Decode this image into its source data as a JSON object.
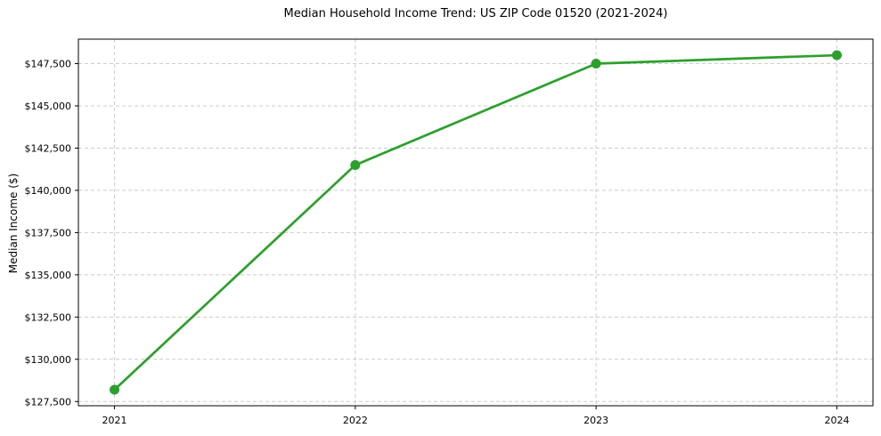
{
  "figure": {
    "background_color": "#ffffff"
  },
  "chart_data": {
    "type": "line",
    "title": "Median Household Income Trend: US ZIP Code 01520 (2021-2024)",
    "xlabel": "",
    "ylabel": "Median Income ($)",
    "categories": [
      "2021",
      "2022",
      "2023",
      "2024"
    ],
    "values": [
      128200,
      141500,
      147500,
      148000
    ],
    "y_ticks": [
      {
        "value": 127500,
        "label": "$127,500"
      },
      {
        "value": 130000,
        "label": "$130,000"
      },
      {
        "value": 132500,
        "label": "$132,500"
      },
      {
        "value": 135000,
        "label": "$135,000"
      },
      {
        "value": 137500,
        "label": "$137,500"
      },
      {
        "value": 140000,
        "label": "$140,000"
      },
      {
        "value": 142500,
        "label": "$142,500"
      },
      {
        "value": 145000,
        "label": "$145,000"
      },
      {
        "value": 147500,
        "label": "$147,500"
      }
    ],
    "xlim": [
      -0.15,
      3.15
    ],
    "ylim": [
      127250,
      148950
    ],
    "line": {
      "color": "#2ca02c",
      "width": 2.7,
      "marker": "circle",
      "marker_radius": 5.5
    },
    "grid": {
      "show": true,
      "line_style": "dashed",
      "color": "#cccccc"
    },
    "axes": {
      "spine_color": "#000000",
      "tick_color": "#000000",
      "text_color": "#000000",
      "tick_length": 4,
      "tick_font_size": 11
    },
    "legend": {
      "show": false
    }
  }
}
